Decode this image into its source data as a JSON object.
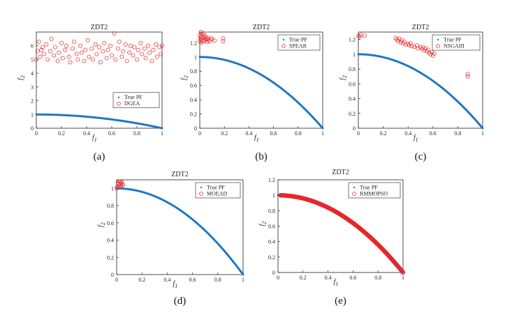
{
  "chart_data": [
    {
      "id": "a",
      "type": "scatter",
      "title": "ZDT2",
      "panel_label": "(a)",
      "xlabel": "f",
      "xlabel_sub": "1",
      "ylabel": "f",
      "ylabel_sub": "2",
      "xlim": [
        0,
        1
      ],
      "ylim": [
        0,
        7
      ],
      "xticks": [
        0,
        0.2,
        0.4,
        0.6,
        0.8,
        1
      ],
      "xtick_labels": [
        "0",
        "0.2",
        "0.4",
        "0.6",
        "0.8",
        "1"
      ],
      "yticks": [
        0,
        1,
        2,
        3,
        4,
        5,
        6
      ],
      "ytick_labels": [
        "0",
        "1",
        "2",
        "3",
        "4",
        "5",
        "6"
      ],
      "legend": [
        "True PF",
        "DGEA"
      ],
      "legend_position": "middle-right",
      "series": [
        {
          "name": "True PF",
          "kind": "pareto_front",
          "formula": "y = 1 - x^2"
        },
        {
          "name": "DGEA",
          "kind": "scatter_circles",
          "points": [
            [
              0.0,
              5.0
            ],
            [
              0.01,
              5.6
            ],
            [
              0.02,
              6.3
            ],
            [
              0.03,
              5.2
            ],
            [
              0.05,
              5.9
            ],
            [
              0.06,
              5.4
            ],
            [
              0.08,
              6.1
            ],
            [
              0.09,
              5.0
            ],
            [
              0.11,
              5.6
            ],
            [
              0.12,
              6.5
            ],
            [
              0.14,
              5.3
            ],
            [
              0.15,
              5.9
            ],
            [
              0.17,
              4.9
            ],
            [
              0.18,
              5.5
            ],
            [
              0.2,
              6.2
            ],
            [
              0.21,
              5.1
            ],
            [
              0.23,
              5.7
            ],
            [
              0.24,
              6.0
            ],
            [
              0.26,
              5.2
            ],
            [
              0.27,
              4.8
            ],
            [
              0.29,
              5.8
            ],
            [
              0.3,
              6.3
            ],
            [
              0.32,
              5.4
            ],
            [
              0.33,
              5.0
            ],
            [
              0.35,
              6.0
            ],
            [
              0.36,
              5.5
            ],
            [
              0.38,
              4.9
            ],
            [
              0.39,
              5.7
            ],
            [
              0.41,
              6.4
            ],
            [
              0.42,
              5.2
            ],
            [
              0.44,
              5.8
            ],
            [
              0.45,
              5.0
            ],
            [
              0.47,
              6.1
            ],
            [
              0.48,
              5.4
            ],
            [
              0.5,
              5.9
            ],
            [
              0.51,
              4.8
            ],
            [
              0.53,
              5.6
            ],
            [
              0.54,
              6.2
            ],
            [
              0.56,
              5.1
            ],
            [
              0.57,
              5.7
            ],
            [
              0.59,
              6.0
            ],
            [
              0.6,
              5.3
            ],
            [
              0.62,
              6.9
            ],
            [
              0.63,
              5.0
            ],
            [
              0.65,
              5.8
            ],
            [
              0.66,
              6.3
            ],
            [
              0.68,
              5.2
            ],
            [
              0.69,
              5.6
            ],
            [
              0.71,
              6.1
            ],
            [
              0.72,
              4.9
            ],
            [
              0.74,
              5.5
            ],
            [
              0.75,
              6.0
            ],
            [
              0.77,
              5.3
            ],
            [
              0.78,
              5.9
            ],
            [
              0.8,
              5.0
            ],
            [
              0.81,
              5.7
            ],
            [
              0.83,
              6.2
            ],
            [
              0.84,
              5.4
            ],
            [
              0.86,
              5.8
            ],
            [
              0.87,
              5.1
            ],
            [
              0.89,
              6.0
            ],
            [
              0.9,
              5.5
            ],
            [
              0.92,
              4.9
            ],
            [
              0.93,
              5.7
            ],
            [
              0.95,
              6.1
            ],
            [
              0.96,
              5.2
            ],
            [
              0.98,
              5.9
            ],
            [
              0.99,
              5.4
            ],
            [
              1.0,
              6.0
            ],
            [
              0.04,
              5.7
            ]
          ]
        }
      ]
    },
    {
      "id": "b",
      "type": "scatter",
      "title": "ZDT2",
      "panel_label": "(b)",
      "xlabel": "f",
      "xlabel_sub": "1",
      "ylabel": "f",
      "ylabel_sub": "2",
      "xlim": [
        0,
        1
      ],
      "ylim": [
        0,
        1.35
      ],
      "xticks": [
        0,
        0.2,
        0.4,
        0.6,
        0.8,
        1
      ],
      "xtick_labels": [
        "0",
        "0.2",
        "0.4",
        "0.6",
        "0.8",
        "1"
      ],
      "yticks": [
        0,
        0.2,
        0.4,
        0.6,
        0.8,
        1,
        1.2
      ],
      "ytick_labels": [
        "0",
        "0.2",
        "0.4",
        "0.6",
        "0.8",
        "1",
        "1.2"
      ],
      "legend": [
        "True PF",
        "SPEAR"
      ],
      "legend_position": "top-right",
      "series": [
        {
          "name": "True PF",
          "kind": "pareto_front",
          "formula": "y = 1 - x^2"
        },
        {
          "name": "SPEAR",
          "kind": "scatter_circles",
          "points": [
            [
              0.0,
              1.3
            ],
            [
              0.005,
              1.25
            ],
            [
              0.01,
              1.28
            ],
            [
              0.012,
              1.2
            ],
            [
              0.015,
              1.32
            ],
            [
              0.02,
              1.24
            ],
            [
              0.025,
              1.27
            ],
            [
              0.03,
              1.22
            ],
            [
              0.035,
              1.3
            ],
            [
              0.04,
              1.26
            ],
            [
              0.045,
              1.23
            ],
            [
              0.05,
              1.28
            ],
            [
              0.055,
              1.25
            ],
            [
              0.06,
              1.21
            ],
            [
              0.065,
              1.27
            ],
            [
              0.07,
              1.24
            ],
            [
              0.08,
              1.22
            ],
            [
              0.09,
              1.26
            ],
            [
              0.1,
              1.25
            ],
            [
              0.12,
              1.23
            ],
            [
              0.19,
              1.22
            ],
            [
              0.19,
              1.26
            ],
            [
              0.0,
              1.22
            ],
            [
              0.01,
              1.35
            ],
            [
              0.03,
              1.33
            ]
          ]
        }
      ]
    },
    {
      "id": "c",
      "type": "scatter",
      "title": "ZDT2",
      "panel_label": "(c)",
      "xlabel": "f",
      "xlabel_sub": "1",
      "ylabel": "f",
      "ylabel_sub": "2",
      "xlim": [
        0,
        1
      ],
      "ylim": [
        0,
        1.3
      ],
      "xticks": [
        0,
        0.2,
        0.4,
        0.6,
        0.8,
        1
      ],
      "xtick_labels": [
        "0",
        "0.2",
        "0.4",
        "0.6",
        "0.8",
        "1"
      ],
      "yticks": [
        0,
        0.2,
        0.4,
        0.6,
        0.8,
        1,
        1.2
      ],
      "ytick_labels": [
        "0",
        "0.2",
        "0.4",
        "0.6",
        "0.8",
        "1",
        "1.2"
      ],
      "legend": [
        "True PF",
        "NSGAIII"
      ],
      "legend_position": "top-right",
      "series": [
        {
          "name": "True PF",
          "kind": "pareto_front",
          "formula": "y = 1 - x^2"
        },
        {
          "name": "NSGAIII",
          "kind": "scatter_circles",
          "points": [
            [
              0.0,
              1.25
            ],
            [
              0.01,
              1.24
            ],
            [
              0.02,
              1.26
            ],
            [
              0.05,
              1.25
            ],
            [
              0.3,
              1.22
            ],
            [
              0.31,
              1.2
            ],
            [
              0.32,
              1.18
            ],
            [
              0.33,
              1.21
            ],
            [
              0.34,
              1.16
            ],
            [
              0.35,
              1.19
            ],
            [
              0.36,
              1.15
            ],
            [
              0.37,
              1.17
            ],
            [
              0.38,
              1.13
            ],
            [
              0.4,
              1.14
            ],
            [
              0.41,
              1.12
            ],
            [
              0.42,
              1.15
            ],
            [
              0.43,
              1.11
            ],
            [
              0.45,
              1.1
            ],
            [
              0.47,
              1.12
            ],
            [
              0.48,
              1.08
            ],
            [
              0.5,
              1.1
            ],
            [
              0.51,
              1.07
            ],
            [
              0.52,
              1.09
            ],
            [
              0.53,
              1.05
            ],
            [
              0.54,
              1.08
            ],
            [
              0.55,
              1.04
            ],
            [
              0.56,
              1.06
            ],
            [
              0.57,
              1.02
            ],
            [
              0.58,
              1.0
            ],
            [
              0.59,
              1.03
            ],
            [
              0.6,
              0.98
            ],
            [
              0.61,
              1.01
            ],
            [
              0.88,
              0.7
            ],
            [
              0.88,
              0.73
            ]
          ]
        }
      ]
    },
    {
      "id": "d",
      "type": "scatter",
      "title": "ZDT2",
      "panel_label": "(d)",
      "xlabel": "f",
      "xlabel_sub": "1",
      "ylabel": "f",
      "ylabel_sub": "2",
      "xlim": [
        0,
        1
      ],
      "ylim": [
        0,
        1.1
      ],
      "xticks": [
        0,
        0.2,
        0.4,
        0.6,
        0.8,
        1
      ],
      "xtick_labels": [
        "0",
        "0.2",
        "0.4",
        "0.6",
        "0.8",
        "1"
      ],
      "yticks": [
        0,
        0.2,
        0.4,
        0.6,
        0.8,
        1
      ],
      "ytick_labels": [
        "0",
        "0.2",
        "0.4",
        "0.6",
        "0.8",
        "1"
      ],
      "legend": [
        "True PF",
        "MOEAD"
      ],
      "legend_position": "top-right",
      "series": [
        {
          "name": "True PF",
          "kind": "pareto_front",
          "formula": "y = 1 - x^2"
        },
        {
          "name": "MOEAD",
          "kind": "scatter_circles",
          "points": [
            [
              0.0,
              1.0
            ],
            [
              0.005,
              1.02
            ],
            [
              0.01,
              1.07
            ],
            [
              0.015,
              1.05
            ],
            [
              0.02,
              1.08
            ],
            [
              0.025,
              1.04
            ],
            [
              0.03,
              1.06
            ],
            [
              0.035,
              1.03
            ],
            [
              0.04,
              1.07
            ],
            [
              0.045,
              1.05
            ],
            [
              0.05,
              1.04
            ],
            [
              0.02,
              1.02
            ],
            [
              0.03,
              1.08
            ]
          ]
        }
      ]
    },
    {
      "id": "e",
      "type": "scatter",
      "title": "ZDT2",
      "panel_label": "(e)",
      "xlabel": "f",
      "xlabel_sub": "1",
      "ylabel": "f",
      "ylabel_sub": "2",
      "xlim": [
        0,
        1
      ],
      "ylim": [
        0,
        1.2
      ],
      "xticks": [
        0,
        0.2,
        0.4,
        0.6,
        0.8,
        1
      ],
      "xtick_labels": [
        "0",
        "0.2",
        "0.4",
        "0.6",
        "0.8",
        "1"
      ],
      "yticks": [
        0,
        0.2,
        0.4,
        0.6,
        0.8,
        1,
        1.2
      ],
      "ytick_labels": [
        "0",
        "0.2",
        "0.4",
        "0.6",
        "0.8",
        "1",
        "1.2"
      ],
      "legend": [
        "True PF",
        "RMMOPSO"
      ],
      "legend_position": "top-right",
      "series": [
        {
          "name": "True PF",
          "kind": "pareto_front",
          "formula": "y = 1 - x^2"
        },
        {
          "name": "RMMOPSO",
          "kind": "on_front_circles",
          "formula": "y = 1 - x^2",
          "x_range": [
            0.02,
            1.0
          ]
        }
      ]
    }
  ],
  "colors": {
    "true_pf": "#1f77c4",
    "solutions": "#e8262a",
    "axis": "#222222"
  }
}
